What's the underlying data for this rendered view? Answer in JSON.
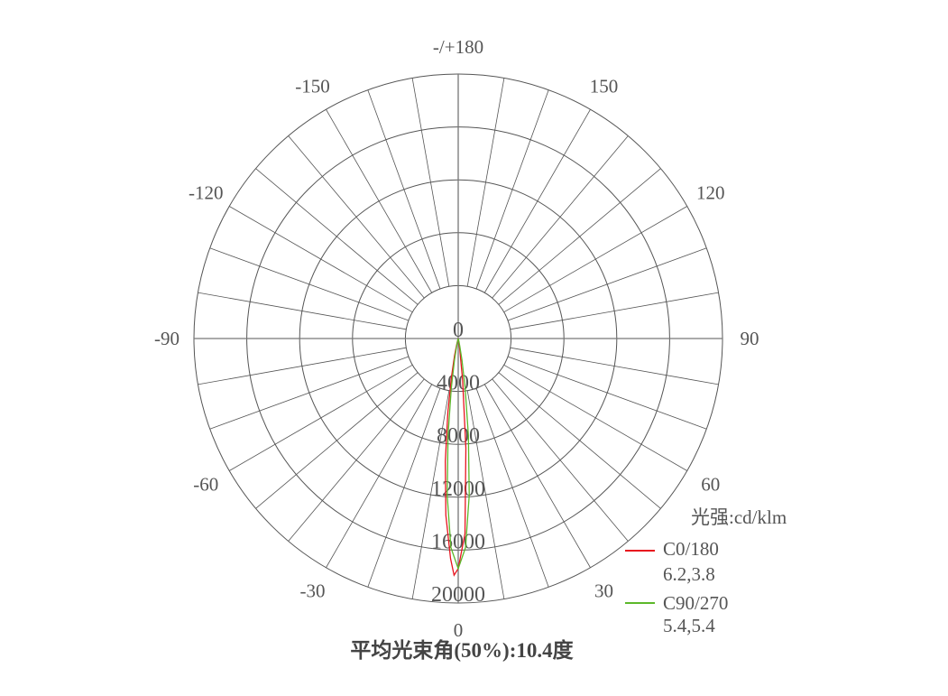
{
  "chart_data": {
    "type": "polar",
    "title": "平均光束角(50%):10.4度",
    "unit_label": "光强:cd/klm",
    "angle_labels": [
      {
        "angle": 0,
        "text": "0"
      },
      {
        "angle": 30,
        "text": "30"
      },
      {
        "angle": 60,
        "text": "60"
      },
      {
        "angle": 90,
        "text": "90"
      },
      {
        "angle": 120,
        "text": "120"
      },
      {
        "angle": 150,
        "text": "150"
      },
      {
        "angle": 180,
        "text": "-/+180"
      },
      {
        "angle": -150,
        "text": "-150"
      },
      {
        "angle": -120,
        "text": "-120"
      },
      {
        "angle": -90,
        "text": "-90"
      },
      {
        "angle": -60,
        "text": "-60"
      },
      {
        "angle": -30,
        "text": "-30"
      }
    ],
    "radial_ticks": [
      0,
      4000,
      8000,
      12000,
      16000,
      20000
    ],
    "radial_labels": [
      "0",
      "4000",
      "8000",
      "12000",
      "16000",
      "20000"
    ],
    "rmax": 20000,
    "spoke_step_deg": 10,
    "grid": true,
    "legend_position": "bottom-right",
    "series": [
      {
        "name": "C0/180",
        "beam_half_angles": "6.2,3.8",
        "color": "#e8141e",
        "angles": [
          -20,
          -16,
          -14,
          -12,
          -10,
          -8,
          -6,
          -4,
          -2,
          -1,
          0,
          2,
          4,
          6,
          8,
          10,
          12,
          20
        ],
        "values": [
          0,
          180,
          520,
          1330,
          2960,
          5640,
          9350,
          13400,
          16650,
          17900,
          17400,
          14760,
          8310,
          3190,
          830,
          150,
          0,
          0
        ]
      },
      {
        "name": "C90/270",
        "beam_half_angles": "5.4,5.4",
        "color": "#5cb82a",
        "angles": [
          -20,
          -16,
          -14,
          -12,
          -10,
          -8,
          -6,
          -4,
          -2,
          0,
          2,
          4,
          6,
          8,
          10,
          12,
          14,
          16,
          20
        ],
        "values": [
          0,
          0,
          170,
          570,
          1620,
          3800,
          7390,
          11900,
          15820,
          17400,
          15820,
          11900,
          7390,
          3800,
          1620,
          570,
          170,
          0,
          0
        ]
      }
    ]
  }
}
